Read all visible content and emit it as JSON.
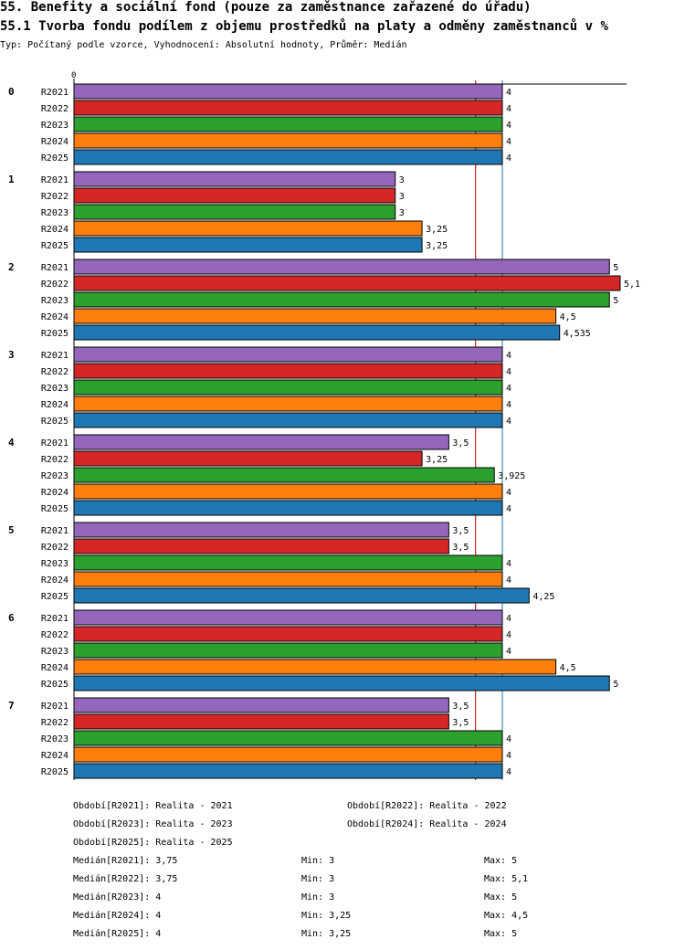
{
  "header": {
    "title": "55. Benefity a sociální fond (pouze za zaměstnance zařazené do úřadu)",
    "subtitle": "55.1 Tvorba fondu podílem z objemu prostředků na platy a odměny zaměstnanců v %",
    "meta": "Typ: Počítaný podle vzorce, Vyhodnocení: Absolutní hodnoty, Průměr: Medián"
  },
  "chart_data": {
    "type": "bar",
    "orientation": "horizontal",
    "title": "55.1 Tvorba fondu podílem z objemu prostředků na platy a odměny zaměstnanců v %",
    "axis_zero_label": "0",
    "categories": [
      "0",
      "1",
      "2",
      "3",
      "4",
      "5",
      "6",
      "7"
    ],
    "series": [
      {
        "name": "R2021",
        "color": "#9467bd",
        "values": [
          4,
          3,
          5,
          4,
          3.5,
          3.5,
          4,
          3.5
        ],
        "labels": [
          "4",
          "3",
          "5",
          "4",
          "3,5",
          "3,5",
          "4",
          "3,5"
        ]
      },
      {
        "name": "R2022",
        "color": "#d62728",
        "values": [
          4,
          3,
          5.1,
          4,
          3.25,
          3.5,
          4,
          3.5
        ],
        "labels": [
          "4",
          "3",
          "5,1",
          "4",
          "3,25",
          "3,5",
          "4",
          "3,5"
        ]
      },
      {
        "name": "R2023",
        "color": "#2ca02c",
        "values": [
          4,
          3,
          5,
          4,
          3.925,
          4,
          4,
          4
        ],
        "labels": [
          "4",
          "3",
          "5",
          "4",
          "3,925",
          "4",
          "4",
          "4"
        ]
      },
      {
        "name": "R2024",
        "color": "#ff7f0e",
        "values": [
          4,
          3.25,
          4.5,
          4,
          4,
          4,
          4.5,
          4
        ],
        "labels": [
          "4",
          "3,25",
          "4,5",
          "4",
          "4",
          "4",
          "4,5",
          "4"
        ]
      },
      {
        "name": "R2025",
        "color": "#1f77b4",
        "values": [
          4,
          3.25,
          4.535,
          4,
          4,
          4.25,
          5,
          4
        ],
        "labels": [
          "4",
          "3,25",
          "4,535",
          "4",
          "4",
          "4,25",
          "5",
          "4"
        ]
      }
    ],
    "reference_lines": [
      {
        "value": 3.75,
        "color": "#c00000"
      },
      {
        "value": 4,
        "color": "#1f77b4"
      }
    ],
    "xlim": [
      0,
      5.1
    ]
  },
  "legend": {
    "periods": [
      "Období[R2021]: Realita - 2021",
      "Období[R2022]: Realita - 2022",
      "Období[R2023]: Realita - 2023",
      "Období[R2024]: Realita - 2024",
      "Období[R2025]: Realita - 2025"
    ],
    "stats": [
      {
        "median": "Medián[R2021]: 3,75",
        "min": "Min: 3",
        "max": "Max: 5"
      },
      {
        "median": "Medián[R2022]: 3,75",
        "min": "Min: 3",
        "max": "Max: 5,1"
      },
      {
        "median": "Medián[R2023]: 4",
        "min": "Min: 3",
        "max": "Max: 5"
      },
      {
        "median": "Medián[R2024]: 4",
        "min": "Min: 3,25",
        "max": "Max: 4,5"
      },
      {
        "median": "Medián[R2025]: 4",
        "min": "Min: 3,25",
        "max": "Max: 5"
      }
    ]
  }
}
